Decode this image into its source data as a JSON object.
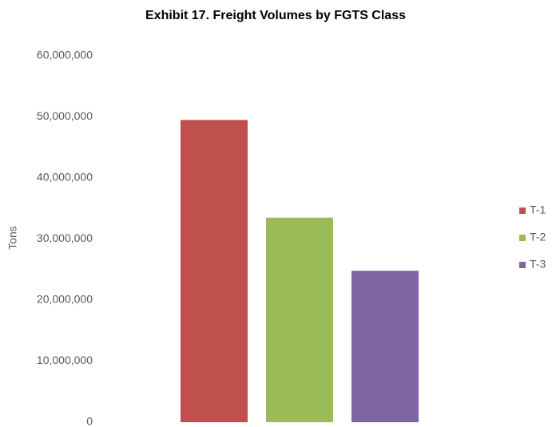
{
  "chart_data": {
    "type": "bar",
    "title": "Exhibit 17. Freight Volumes by FGTS Class",
    "ylabel": "Tons",
    "categories": [
      null
    ],
    "series": [
      {
        "name": "T-1",
        "color": "#c0504d",
        "values": [
          49500000
        ]
      },
      {
        "name": "T-2",
        "color": "#9bbb59",
        "values": [
          33500000
        ]
      },
      {
        "name": "T-3",
        "color": "#8064a2",
        "values": [
          24800000
        ]
      }
    ],
    "ylim": [
      0,
      60000000
    ],
    "yticks": [
      0,
      {
        "value": 10000000,
        "label": "10,000,000"
      },
      {
        "value": 20000000,
        "label": "20,000,000"
      },
      {
        "value": 30000000,
        "label": "30,000,000"
      },
      {
        "value": 40000000,
        "label": "40,000,000"
      },
      {
        "value": 50000000,
        "label": "50,000,000"
      },
      {
        "value": 60000000,
        "label": "60,000,000"
      }
    ],
    "grid": false,
    "legend": "right"
  }
}
